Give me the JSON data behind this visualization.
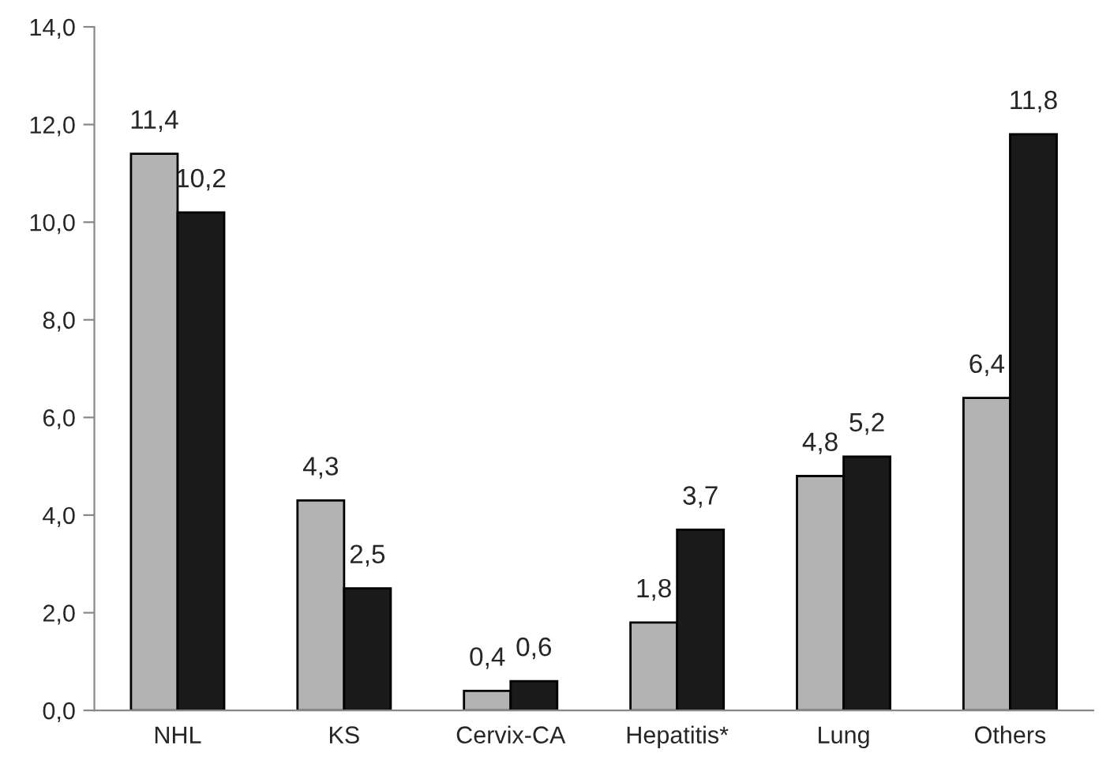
{
  "chart_data": {
    "type": "bar",
    "categories": [
      "NHL",
      "KS",
      "Cervix-CA",
      "Hepatitis*",
      "Lung",
      "Others"
    ],
    "series": [
      {
        "color": "#b3b3b3",
        "values": [
          11.4,
          4.3,
          0.4,
          1.8,
          4.8,
          6.4
        ],
        "value_labels": [
          "11,4",
          "4,3",
          "0,4",
          "1,8",
          "4,8",
          "6,4"
        ]
      },
      {
        "color": "#1a1a1a",
        "values": [
          10.2,
          2.5,
          0.6,
          3.7,
          5.2,
          11.8
        ],
        "value_labels": [
          "10,2",
          "2,5",
          "0,6",
          "3,7",
          "5,2",
          "11,8"
        ]
      }
    ],
    "ylim": [
      0,
      14
    ],
    "yticks": [
      {
        "value": 0,
        "label": "0,0"
      },
      {
        "value": 2,
        "label": "2,0"
      },
      {
        "value": 4,
        "label": "4,0"
      },
      {
        "value": 6,
        "label": "6,0"
      },
      {
        "value": 8,
        "label": "8,0"
      },
      {
        "value": 10,
        "label": "10,0"
      },
      {
        "value": 12,
        "label": "12,0"
      },
      {
        "value": 14,
        "label": "14,0"
      }
    ],
    "grid": false,
    "legend": false
  }
}
